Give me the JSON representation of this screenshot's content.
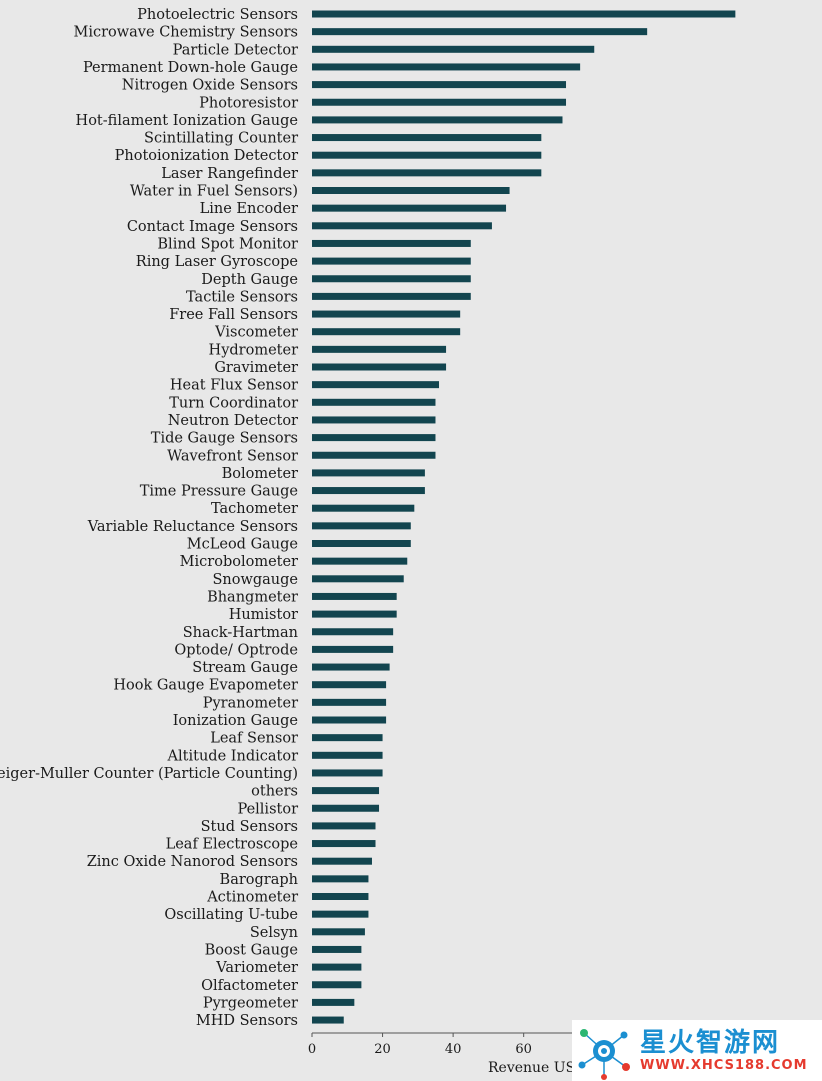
{
  "chart_data": {
    "type": "bar",
    "orientation": "horizontal",
    "categories": [
      "Photoelectric Sensors",
      "Microwave Chemistry Sensors",
      "Particle Detector",
      "Permanent Down-hole Gauge",
      "Nitrogen Oxide Sensors",
      "Photoresistor",
      "Hot-filament Ionization Gauge",
      "Scintillating Counter",
      "Photoionization Detector",
      "Laser Rangefinder",
      "Water in Fuel Sensors)",
      "Line Encoder",
      "Contact Image Sensors",
      "Blind Spot Monitor",
      "Ring Laser Gyroscope",
      "Depth Gauge",
      "Tactile Sensors",
      "Free Fall Sensors",
      "Viscometer",
      "Hydrometer",
      "Gravimeter",
      "Heat Flux Sensor",
      "Turn Coordinator",
      "Neutron Detector",
      "Tide Gauge Sensors",
      "Wavefront Sensor",
      "Bolometer",
      "Time Pressure Gauge",
      "Tachometer",
      "Variable Reluctance Sensors",
      "McLeod Gauge",
      "Microbolometer",
      "Snowgauge",
      "Bhangmeter",
      "Humistor",
      "Shack-Hartman",
      "Optode/ Optrode",
      "Stream Gauge",
      "Hook Gauge Evapometer",
      "Pyranometer",
      "Ionization Gauge",
      "Leaf Sensor",
      "Altitude Indicator",
      "Geiger-Muller Counter (Particle Counting)",
      "others",
      "Pellistor",
      "Stud Sensors",
      "Leaf Electroscope",
      "Zinc Oxide Nanorod Sensors",
      "Barograph",
      "Actinometer",
      "Oscillating U-tube",
      "Selsyn",
      "Boost Gauge",
      "Variometer",
      "Olfactometer",
      "Pyrgeometer",
      "MHD Sensors"
    ],
    "values": [
      120,
      95,
      80,
      76,
      72,
      72,
      71,
      65,
      65,
      65,
      56,
      55,
      51,
      45,
      45,
      45,
      45,
      42,
      42,
      38,
      38,
      36,
      35,
      35,
      35,
      35,
      32,
      32,
      29,
      28,
      28,
      27,
      26,
      24,
      24,
      23,
      23,
      22,
      21,
      21,
      21,
      20,
      20,
      20,
      19,
      19,
      18,
      18,
      17,
      16,
      16,
      16,
      15,
      14,
      14,
      14,
      12,
      9
    ],
    "xticks": [
      0,
      20,
      40,
      60
    ],
    "xlim": [
      0,
      120
    ],
    "xlabel": "Revenue US$mn",
    "ylabel": "",
    "title": "",
    "grid": false,
    "bar_color": "#12454f"
  },
  "watermark": {
    "title": "星火智游网",
    "url": "WWW.XHCS188.COM"
  }
}
